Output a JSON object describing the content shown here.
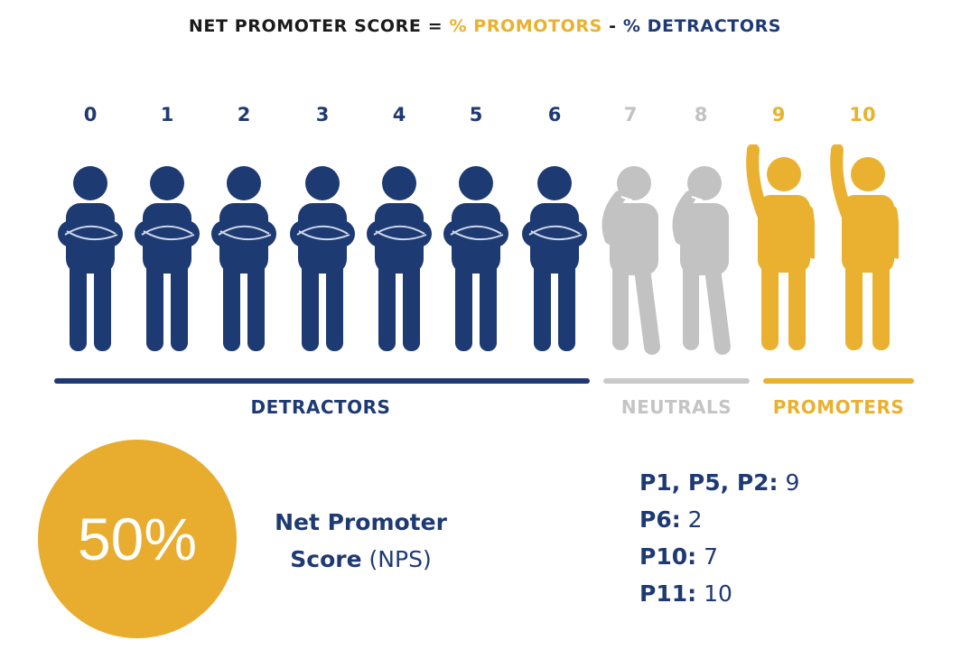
{
  "formula": {
    "prefix": "NET PROMOTER SCORE = ",
    "promoters_term": "% PROMOTORS",
    "minus": " - ",
    "detractors_term": "% DETRACTORS"
  },
  "colors": {
    "detractor": "#1e3a73",
    "neutral": "#c2c2c2",
    "promoter": "#e9b12f",
    "score_circle": "#e8ac2e"
  },
  "scale": [
    {
      "label": "0",
      "group": "detractor",
      "icon": "arms-crossed-person-icon"
    },
    {
      "label": "1",
      "group": "detractor",
      "icon": "arms-crossed-person-icon"
    },
    {
      "label": "2",
      "group": "detractor",
      "icon": "arms-crossed-person-icon"
    },
    {
      "label": "3",
      "group": "detractor",
      "icon": "arms-crossed-person-icon"
    },
    {
      "label": "4",
      "group": "detractor",
      "icon": "arms-crossed-person-icon"
    },
    {
      "label": "5",
      "group": "detractor",
      "icon": "arms-crossed-person-icon"
    },
    {
      "label": "6",
      "group": "detractor",
      "icon": "arms-crossed-person-icon"
    },
    {
      "label": "7",
      "group": "neutral",
      "icon": "thinking-person-icon"
    },
    {
      "label": "8",
      "group": "neutral",
      "icon": "thinking-person-icon"
    },
    {
      "label": "9",
      "group": "promoter",
      "icon": "raised-hand-person-icon"
    },
    {
      "label": "10",
      "group": "promoter",
      "icon": "raised-hand-person-icon"
    }
  ],
  "groups": {
    "detractors": "DETRACTORS",
    "neutrals": "NEUTRALS",
    "promoters": "PROMOTERS"
  },
  "score": {
    "value": "50%",
    "label_bold": "Net Promoter",
    "label_bold2": "Score",
    "label_normal": " (NPS)"
  },
  "responses": [
    {
      "participants": "P1, P5, P2:",
      "score": "9"
    },
    {
      "participants": "P6:",
      "score": "2"
    },
    {
      "participants": "P10:",
      "score": "7"
    },
    {
      "participants": "P11:",
      "score": "10"
    }
  ]
}
